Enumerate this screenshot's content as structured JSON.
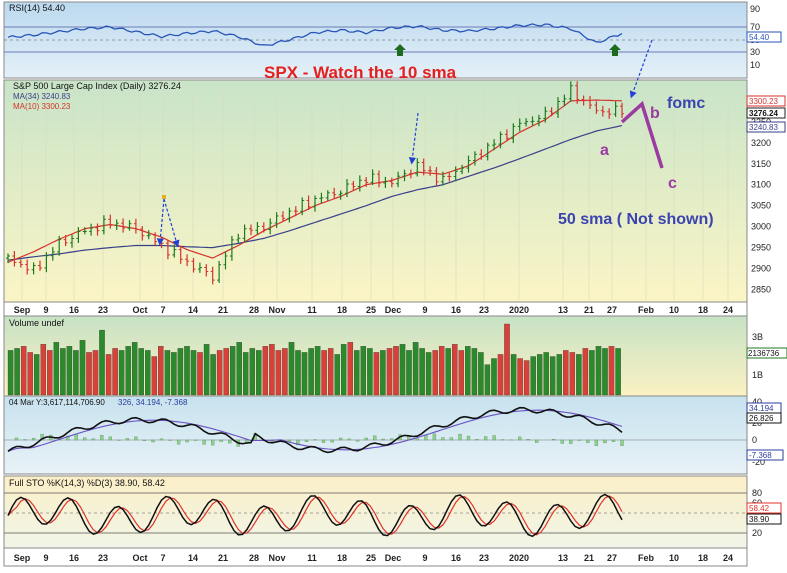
{
  "chart_data": [
    {
      "type": "line",
      "panel": "rsi",
      "label": "RSI(14) 54.40",
      "levels": [
        70,
        30
      ],
      "ylim": [
        0,
        90
      ],
      "yticks": [
        10,
        30,
        50,
        70,
        90
      ],
      "value_badge": "54.40",
      "x": [
        0,
        6,
        12,
        18,
        24,
        30,
        36,
        42,
        48,
        54,
        60,
        66,
        72,
        78,
        84,
        90,
        96,
        102,
        108,
        114,
        120,
        126,
        132,
        138,
        144
      ],
      "values": [
        49,
        52,
        56,
        60,
        62,
        56,
        50,
        54,
        57,
        50,
        38,
        46,
        55,
        58,
        55,
        61,
        63,
        58,
        57,
        60,
        64,
        65,
        60,
        42,
        54
      ]
    },
    {
      "type": "line",
      "panel": "price",
      "title": "SPX - Watch the 10 sma",
      "label": "S&P 500 Large Cap Index (Daily) 3276.24",
      "ylim": [
        2825,
        3345
      ],
      "yticks": [
        2850,
        2900,
        2950,
        3000,
        3050,
        3100,
        3150,
        3200,
        3250
      ],
      "badges": [
        "3300.23",
        "3276.24",
        "3240.83"
      ],
      "x": [
        0,
        6,
        12,
        18,
        24,
        30,
        36,
        42,
        48,
        54,
        60,
        66,
        72,
        78,
        84,
        90,
        96,
        102,
        108,
        114,
        120,
        126,
        132,
        138,
        144
      ],
      "series": [
        {
          "name": "S&P 500 Large Cap Index (Daily)",
          "values": [
            2925,
            2895,
            2960,
            2990,
            3010,
            2995,
            2955,
            2915,
            2880,
            2985,
            3000,
            3035,
            3065,
            3085,
            3115,
            3105,
            3145,
            3110,
            3155,
            3200,
            3245,
            3265,
            3325,
            3275,
            3276
          ]
        },
        {
          "name": "MA(34) 3240.83",
          "values": [
            2920,
            2928,
            2935,
            2944,
            2950,
            2955,
            2955,
            2952,
            2950,
            2960,
            2972,
            2990,
            3010,
            3030,
            3050,
            3072,
            3088,
            3100,
            3120,
            3140,
            3162,
            3185,
            3208,
            3228,
            3241
          ]
        },
        {
          "name": "MA(10) 3300.23",
          "values": [
            2915,
            2940,
            2970,
            2995,
            3005,
            2995,
            2975,
            2945,
            2925,
            2955,
            2990,
            3020,
            3050,
            3072,
            3100,
            3110,
            3130,
            3125,
            3145,
            3185,
            3225,
            3255,
            3300,
            3302,
            3300
          ]
        }
      ],
      "annotations": {
        "a": "a",
        "b": "b",
        "c": "c",
        "fomc": "fomc",
        "note": "50 sma ( Not shown)"
      }
    },
    {
      "type": "bar",
      "panel": "volume",
      "label": "Volume undef",
      "yticks": [
        "3B",
        "2B",
        "1B"
      ],
      "value_badge": "2136736",
      "values": [
        2.2,
        2.3,
        2.4,
        2.1,
        2.0,
        2.5,
        2.2,
        2.6,
        2.3,
        2.4,
        2.2,
        2.7,
        2.1,
        2.2,
        3.2,
        2.0,
        2.3,
        2.2,
        2.4,
        2.6,
        2.3,
        2.2,
        1.9,
        2.4,
        2.2,
        2.1,
        2.3,
        2.4,
        2.2,
        2.1,
        2.5,
        2.0,
        2.2,
        2.3,
        2.4,
        2.6,
        2.1,
        2.3,
        2.2,
        2.4,
        2.5,
        2.2,
        2.3,
        2.6,
        2.2,
        2.1,
        2.3,
        2.4,
        2.2,
        2.3,
        2.0,
        2.5,
        2.6,
        2.2,
        2.4,
        2.3,
        2.1,
        2.2,
        2.3,
        2.4,
        2.5,
        2.2,
        2.6,
        2.3,
        2.1,
        2.2,
        2.4,
        2.3,
        2.5,
        2.2,
        2.4,
        2.3,
        2.1,
        1.5,
        1.8,
        2.0,
        3.5,
        2.0,
        1.8,
        1.7,
        1.9,
        2.0,
        2.1,
        1.9,
        2.0,
        2.2,
        2.1,
        2.0,
        2.3,
        2.2,
        2.4,
        2.3,
        2.4,
        2.3
      ]
    },
    {
      "type": "line",
      "panel": "macd",
      "label": "04 Mar Y:3,617,114,706.90",
      "extra_label": "326, 34.194, -7.368",
      "yticks": [
        "40",
        "20",
        "0",
        "-20"
      ],
      "badges": [
        "34.194",
        "26.826",
        "-7.368"
      ]
    },
    {
      "type": "line",
      "panel": "stochastic",
      "label": "Full STO %K(14,3) %D(3) 38.90, 58.42",
      "levels": [
        80,
        20
      ],
      "yticks": [
        80,
        60,
        40,
        20
      ],
      "badges": [
        "58.42",
        "38.90"
      ]
    }
  ],
  "x_axis": {
    "labels_top": [
      "Sep",
      "9",
      "16",
      "23",
      "Oct",
      "7",
      "14",
      "21",
      "28",
      "Nov",
      "11",
      "18",
      "25",
      "Dec",
      "9",
      "16",
      "23",
      "2020",
      "13",
      "21",
      "27",
      "Feb",
      "10",
      "18",
      "24"
    ],
    "labels_bottom": [
      "Sep",
      "9",
      "16",
      "23",
      "Oct",
      "7",
      "14",
      "21",
      "28",
      "Nov",
      "11",
      "18",
      "25",
      "Dec",
      "9",
      "16",
      "23",
      "2020",
      "13",
      "21",
      "27",
      "Feb",
      "10",
      "18",
      "24"
    ]
  },
  "colors": {
    "price_bar": "#1d7a1d",
    "ma34": "#3a3f8a",
    "ma10": "#d4332d",
    "rsi_line": "#2855b8",
    "title": "#e4201f",
    "annot_purple": "#9b3aa0",
    "annot_blue": "#3a43b0"
  }
}
